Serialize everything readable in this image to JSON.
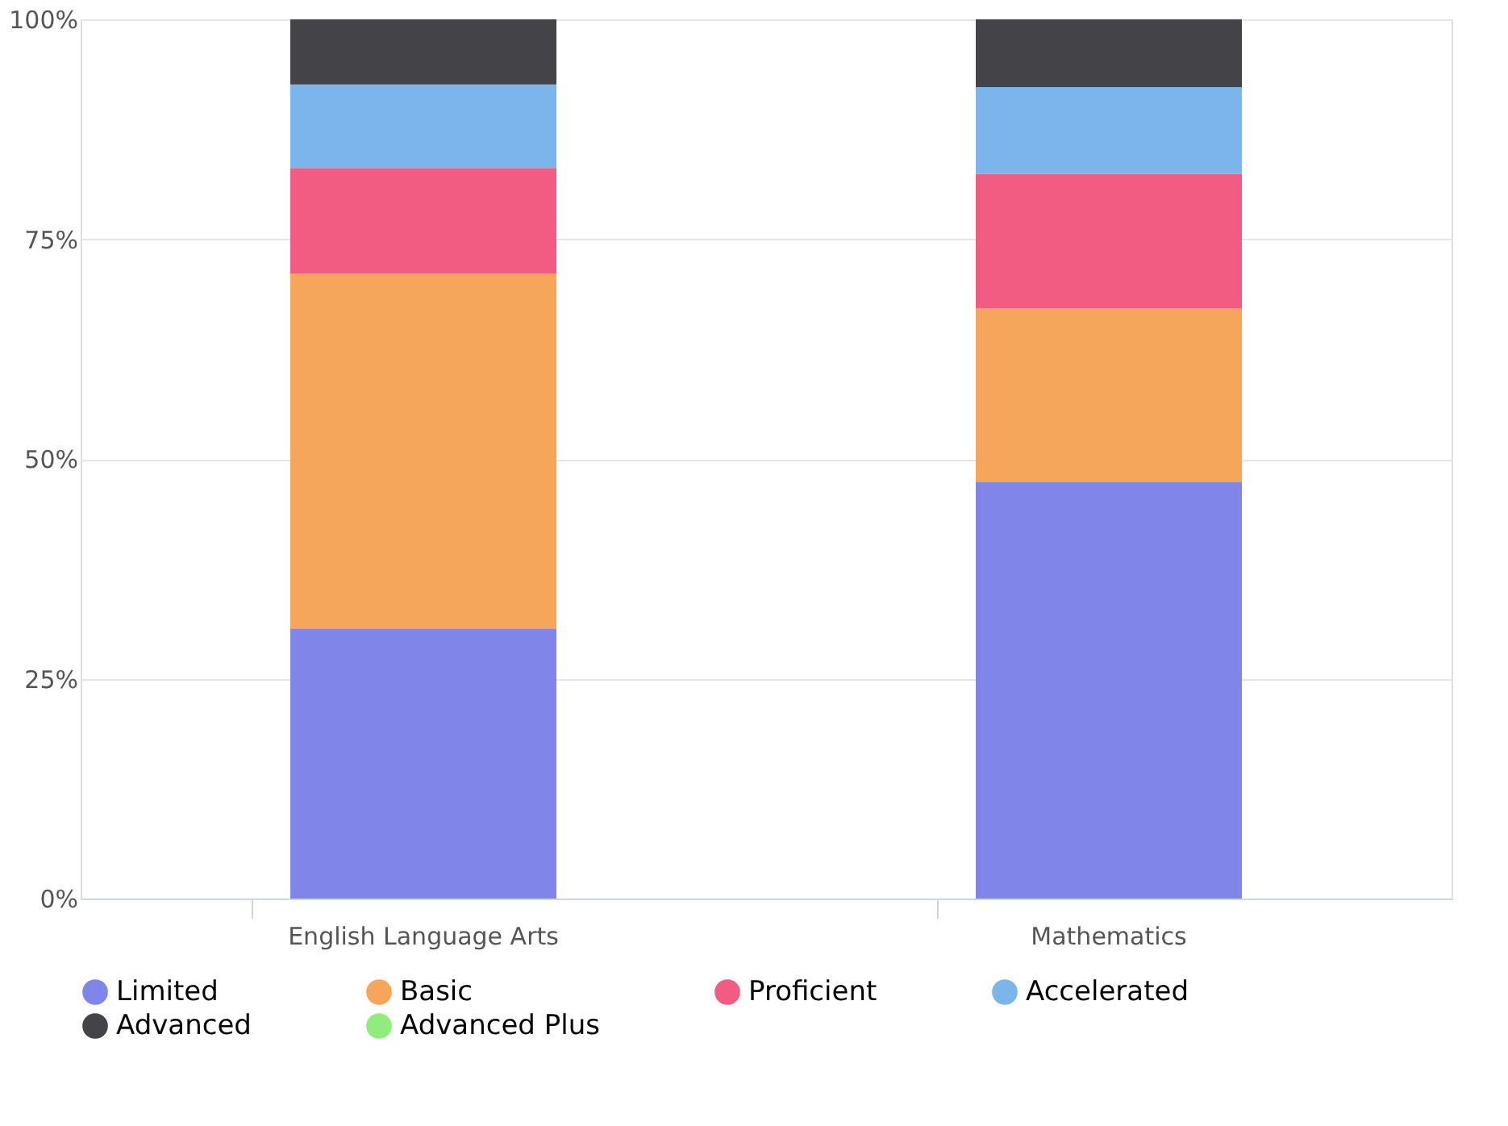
{
  "chart_data": {
    "type": "bar",
    "stacked": true,
    "categories": [
      "English Language Arts",
      "Mathematics"
    ],
    "series": [
      {
        "name": "Limited",
        "color": "#7f85e9",
        "values": [
          30.7,
          47.4
        ]
      },
      {
        "name": "Basic",
        "color": "#f5a65b",
        "values": [
          40.4,
          19.7
        ]
      },
      {
        "name": "Proficient",
        "color": "#f25c82",
        "values": [
          12.0,
          15.3
        ]
      },
      {
        "name": "Accelerated",
        "color": "#7cb5ec",
        "values": [
          9.5,
          9.9
        ]
      },
      {
        "name": "Advanced",
        "color": "#434348",
        "values": [
          7.4,
          7.7
        ]
      },
      {
        "name": "Advanced Plus",
        "color": "#90ed7d",
        "values": [
          0,
          0
        ]
      }
    ],
    "ylim": [
      0,
      100
    ],
    "yticks": [
      {
        "value": 0,
        "label": "0%"
      },
      {
        "value": 25,
        "label": "25%"
      },
      {
        "value": 50,
        "label": "50%"
      },
      {
        "value": 75,
        "label": "75%"
      },
      {
        "value": 100,
        "label": "100%"
      }
    ],
    "grid": "y",
    "legend": "bottom"
  }
}
